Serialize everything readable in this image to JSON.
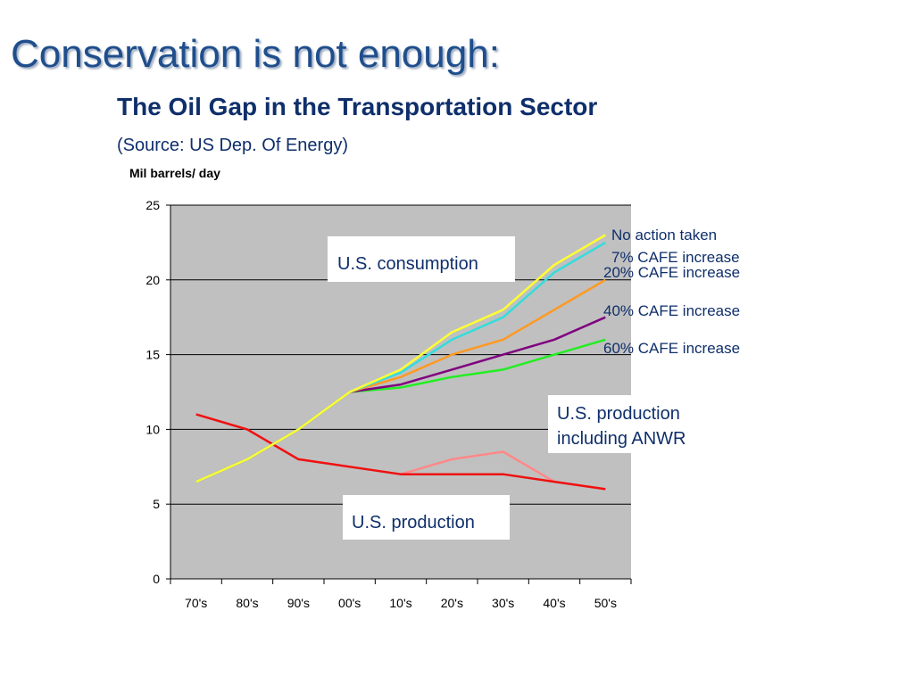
{
  "slide": {
    "title": "Conservation is not enough:",
    "subtitle": "The Oil Gap in the Transportation Sector",
    "source": "(Source: US Dep. Of Energy)"
  },
  "chart_data": {
    "type": "line",
    "ylabel": "Mil barrels/ day",
    "xlabel": "",
    "categories": [
      "70's",
      "80's",
      "90's",
      "00's",
      "10's",
      "20's",
      "30's",
      "40's",
      "50's"
    ],
    "ylim": [
      0,
      25
    ],
    "yticks": [
      0,
      5,
      10,
      15,
      20,
      25
    ],
    "grid": "horizontal",
    "plot_background": "#c0c0c0",
    "series": [
      {
        "name": "No action taken",
        "color": "#ffff33",
        "values": [
          6.5,
          8,
          10,
          12.5,
          14,
          16.5,
          18,
          21,
          23
        ]
      },
      {
        "name": "7% CAFE increase",
        "color": "#33dddd",
        "values": [
          6.5,
          8,
          10,
          12.5,
          13.8,
          16,
          17.5,
          20.5,
          22.5
        ]
      },
      {
        "name": "20% CAFE increase",
        "color": "#ff9922",
        "values": [
          6.5,
          8,
          10,
          12.5,
          13.5,
          15,
          16,
          18,
          20
        ]
      },
      {
        "name": "40% CAFE increase",
        "color": "#800080",
        "values": [
          6.5,
          8,
          10,
          12.5,
          13,
          14,
          15,
          16,
          17.5
        ]
      },
      {
        "name": "60% CAFE increase",
        "color": "#22ee22",
        "values": [
          6.5,
          8,
          10,
          12.5,
          12.8,
          13.5,
          14,
          15,
          16
        ]
      },
      {
        "name": "",
        "color": "#ee1111",
        "values": [
          11,
          10,
          8,
          7.5,
          7,
          7,
          7,
          6.5,
          6
        ]
      },
      {
        "name": "",
        "color": "#ff8888",
        "values": [
          11,
          10,
          8,
          7.5,
          7,
          8,
          8.5,
          6.5,
          6
        ]
      }
    ],
    "annotations": [
      {
        "text": "U.S. consumption"
      },
      {
        "text": "U.S. production"
      },
      {
        "lines": [
          "U.S. production",
          "including ANWR"
        ]
      }
    ]
  }
}
